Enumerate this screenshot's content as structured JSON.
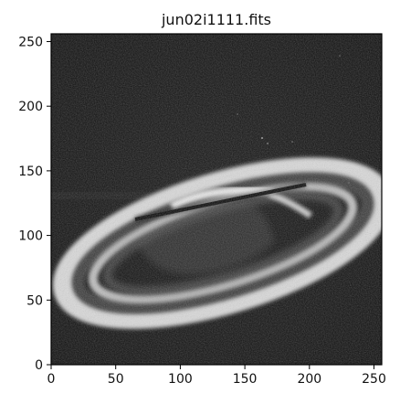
{
  "figure": {
    "title": "jun02i1111.fits",
    "image_subject": "saturn-with-rings-grayscale",
    "colormap": "gray",
    "background_color": "#ffffff",
    "axes_color": "#000000"
  },
  "chart_data": {
    "type": "image",
    "title": "jun02i1111.fits",
    "xlim": [
      0,
      256
    ],
    "ylim": [
      0,
      256
    ],
    "x_ticks": [
      0,
      50,
      100,
      150,
      200,
      250
    ],
    "y_ticks": [
      0,
      50,
      100,
      150,
      200,
      250
    ],
    "x_tick_labels": [
      "0",
      "50",
      "100",
      "150",
      "200",
      "250"
    ],
    "y_tick_labels": [
      "0",
      "50",
      "100",
      "150",
      "200",
      "250"
    ],
    "xlabel": "",
    "ylabel": "",
    "grid": false
  }
}
